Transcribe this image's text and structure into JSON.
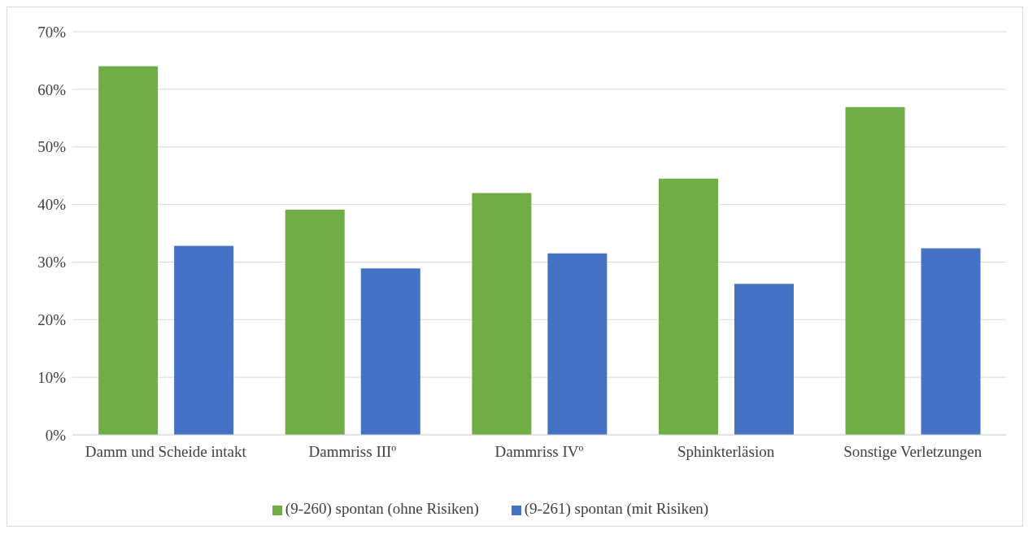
{
  "chart_data": {
    "type": "bar",
    "categories": [
      "Damm und Scheide intakt",
      "Dammriss IIIº",
      "Dammriss IVº",
      "Sphinkterläsion",
      "Sonstige Verletzungen"
    ],
    "series": [
      {
        "name": "(9-260) spontan (ohne Risiken)",
        "color": "#70ad47",
        "values": [
          64.0,
          39.1,
          42.0,
          44.5,
          56.9
        ]
      },
      {
        "name": "(9-261) spontan (mit Risiken)",
        "color": "#4472c4",
        "values": [
          32.8,
          28.9,
          31.5,
          26.2,
          32.4
        ]
      }
    ],
    "ylim": [
      0,
      70
    ],
    "yticks": [
      {
        "value": 0,
        "label": "0%"
      },
      {
        "value": 10,
        "label": "10%"
      },
      {
        "value": 20,
        "label": "20%"
      },
      {
        "value": 30,
        "label": "30%"
      },
      {
        "value": 40,
        "label": "40%"
      },
      {
        "value": 50,
        "label": "50%"
      },
      {
        "value": 60,
        "label": "60%"
      },
      {
        "value": 70,
        "label": "70%"
      }
    ],
    "grid": "y",
    "legend": "bottom"
  }
}
